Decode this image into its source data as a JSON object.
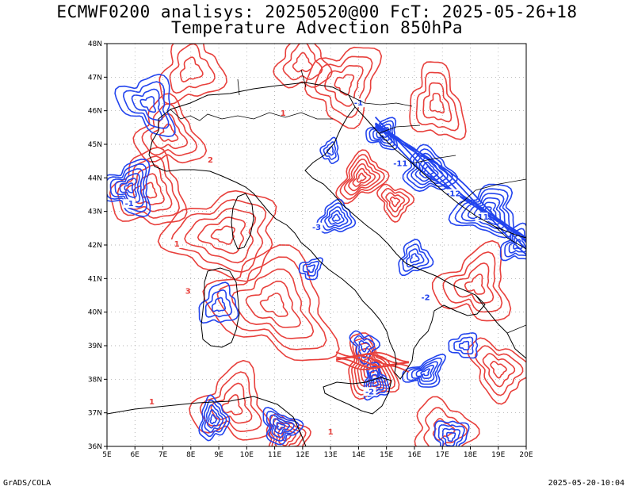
{
  "header": {
    "title_line1": "ECMWF0200 analisys: 20250520@00 FcT: 2025-05-26+18",
    "title_line2": "Temperature Advection 850hPa"
  },
  "footer": {
    "left": "GrADS/COLA",
    "right": "2025-05-20-10:04"
  },
  "map": {
    "lat_labels": [
      "48N",
      "47N",
      "46N",
      "45N",
      "44N",
      "43N",
      "42N",
      "41N",
      "40N",
      "39N",
      "38N",
      "37N",
      "36N"
    ],
    "lon_labels": [
      "5E",
      "6E",
      "7E",
      "8E",
      "9E",
      "10E",
      "11E",
      "12E",
      "13E",
      "14E",
      "15E",
      "16E",
      "17E",
      "18E",
      "19E",
      "20E"
    ],
    "lat_range": [
      36,
      48
    ],
    "lon_range": [
      5,
      20
    ],
    "grid": true,
    "colors": {
      "warm_advection": "#e8403c",
      "cold_advection": "#2244ee",
      "coastline": "#000000",
      "grid": "#999999"
    },
    "contour_labels": [
      {
        "text": "-11",
        "color": "cold"
      },
      {
        "text": "-11",
        "color": "cold"
      },
      {
        "text": "-12",
        "color": "cold"
      },
      {
        "text": "-2",
        "color": "cold"
      },
      {
        "text": "-1",
        "color": "cold"
      },
      {
        "text": "-1",
        "color": "cold"
      },
      {
        "text": "-3",
        "color": "cold"
      },
      {
        "text": "-2",
        "color": "cold"
      },
      {
        "text": "1",
        "color": "warm"
      },
      {
        "text": "1",
        "color": "warm"
      },
      {
        "text": "3",
        "color": "warm"
      },
      {
        "text": "2",
        "color": "warm"
      },
      {
        "text": "1",
        "color": "warm"
      },
      {
        "text": "1",
        "color": "warm"
      }
    ]
  }
}
